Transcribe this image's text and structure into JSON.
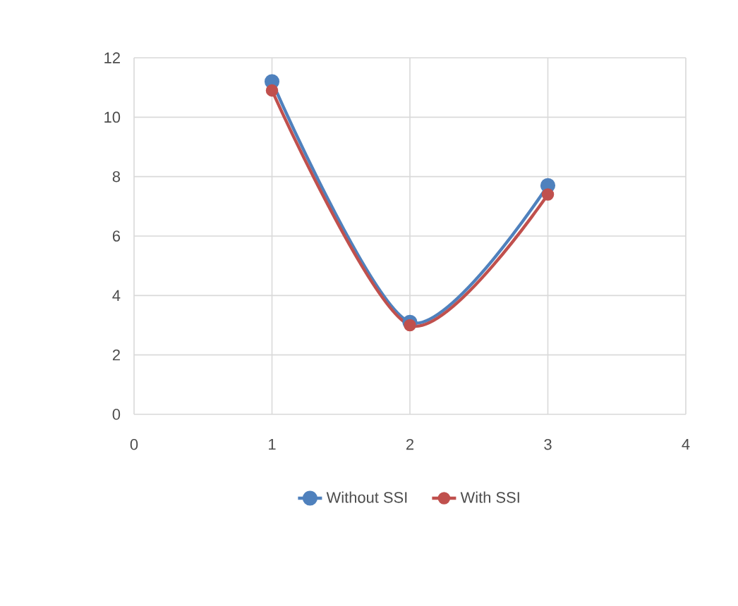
{
  "chart_data": {
    "type": "line",
    "x": [
      1,
      2,
      3
    ],
    "series": [
      {
        "name": "Without SSI",
        "color": "#4f81bd",
        "values": [
          11.2,
          3.1,
          7.7
        ]
      },
      {
        "name": "With SSI",
        "color": "#c0504d",
        "values": [
          10.9,
          3.0,
          7.4
        ]
      }
    ],
    "xlim": [
      0,
      4
    ],
    "xticks": [
      0,
      1,
      2,
      3,
      4
    ],
    "ylim": [
      0,
      12
    ],
    "yticks": [
      0,
      2,
      4,
      6,
      8,
      10,
      12
    ],
    "grid": true,
    "legend": "bottom",
    "marker": "circle",
    "line_style": "solid"
  }
}
